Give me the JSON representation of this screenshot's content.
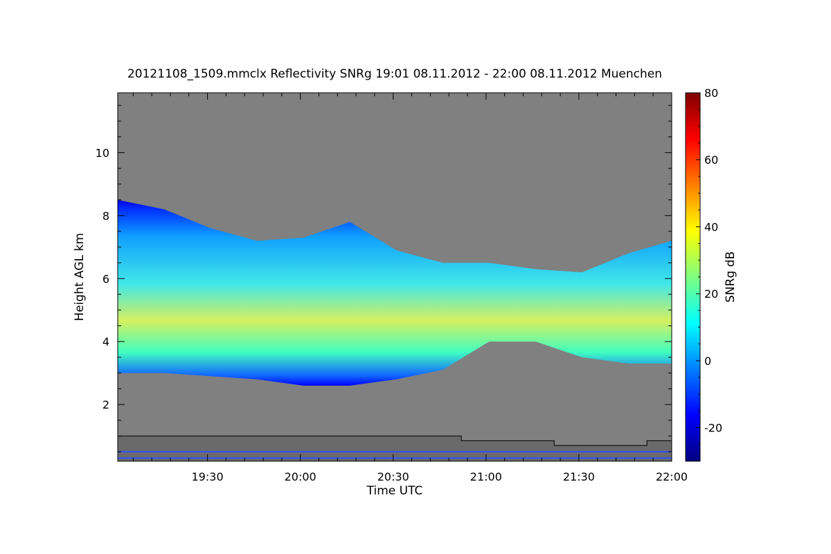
{
  "chart_data": {
    "type": "heatmap",
    "title": "20121108_1509.mmclx Reflectivity SNRg   19:01 08.11.2012 - 22:00 08.11.2012 Muenchen",
    "xlabel": "Time UTC",
    "ylabel": "Height AGL km",
    "x_range": [
      "19:01",
      "22:00"
    ],
    "y_range_km": [
      0.2,
      11.9
    ],
    "x_ticks": [
      "19:30",
      "20:00",
      "20:30",
      "21:00",
      "21:30",
      "22:00"
    ],
    "x_tick_minutes": [
      29,
      59,
      89,
      119,
      149,
      179
    ],
    "y_ticks": [
      "2",
      "4",
      "6",
      "8",
      "10"
    ],
    "y_tick_values": [
      2,
      4,
      6,
      8,
      10
    ],
    "colorbar": {
      "label": "SNRg dB",
      "range": [
        -30,
        80
      ],
      "ticks": [
        "80",
        "60",
        "40",
        "20",
        "0",
        "-20"
      ],
      "tick_values": [
        80,
        60,
        40,
        20,
        0,
        -20
      ]
    },
    "background_color": "#808080",
    "colormap": [
      "#00007f",
      "#0000ff",
      "#007fff",
      "#00ffff",
      "#7fff7f",
      "#ffff00",
      "#ff7f00",
      "#ff0000",
      "#7f0000"
    ],
    "cloud_layer": {
      "minutes": [
        0,
        15,
        30,
        45,
        60,
        75,
        90,
        105,
        120,
        135,
        150,
        165,
        179
      ],
      "base_km": [
        3.0,
        3.0,
        2.9,
        2.8,
        2.6,
        2.6,
        2.8,
        3.1,
        4.0,
        4.0,
        3.5,
        3.3,
        3.3
      ],
      "top_km": [
        8.5,
        8.2,
        7.6,
        7.2,
        7.3,
        7.8,
        6.9,
        6.5,
        6.5,
        6.3,
        6.2,
        6.8,
        7.2
      ]
    },
    "blind_zone_step_km": [
      {
        "from": 0,
        "to": 111,
        "height": 1.0
      },
      {
        "from": 111,
        "to": 141,
        "height": 0.85
      },
      {
        "from": 141,
        "to": 171,
        "height": 0.7
      },
      {
        "from": 171,
        "to": 179,
        "height": 0.85
      }
    ]
  }
}
